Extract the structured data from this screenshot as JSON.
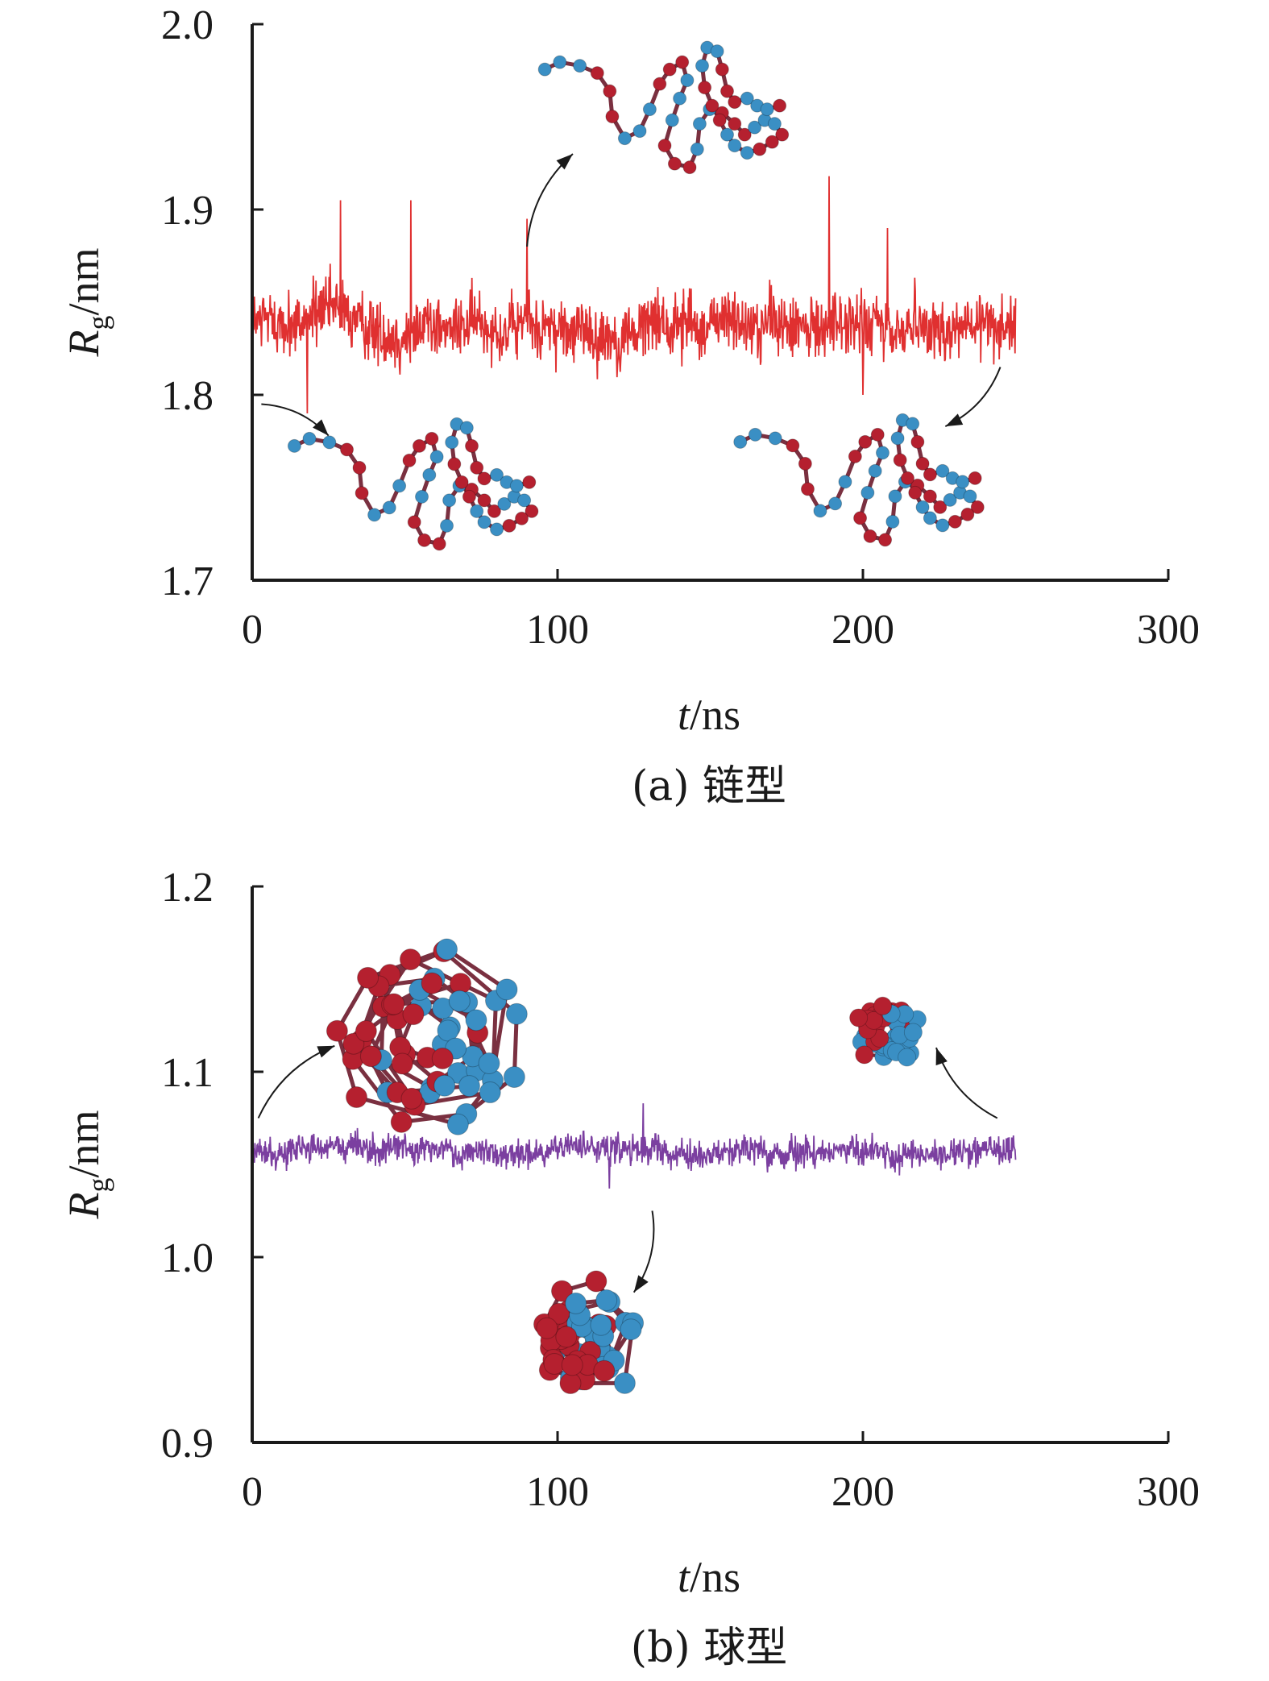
{
  "chart_data": [
    {
      "panel": "a",
      "type": "line",
      "caption": "(a) 链型",
      "ylabel_main": "R",
      "ylabel_sub": "g",
      "ylabel_unit": "/nm",
      "xlabel_main": "t",
      "xlabel_unit": "/ns",
      "xlim": [
        0,
        300
      ],
      "ylim": [
        1.7,
        2.0
      ],
      "xticks": [
        "0",
        "100",
        "200",
        "300"
      ],
      "yticks": [
        "1.7",
        "1.8",
        "1.9",
        "2.0"
      ],
      "color": "#e03030",
      "series_range": [
        0,
        250
      ],
      "series_mean": 1.838,
      "series_noise": 0.013,
      "spikes": [
        {
          "x": 18,
          "y": 1.79
        },
        {
          "x": 29,
          "y": 1.905
        },
        {
          "x": 52,
          "y": 1.905
        },
        {
          "x": 90,
          "y": 1.895
        },
        {
          "x": 189,
          "y": 1.918
        },
        {
          "x": 208,
          "y": 1.89
        },
        {
          "x": 200,
          "y": 1.8
        }
      ],
      "insets": [
        {
          "style": "chain",
          "cx": 140,
          "cy": 1.958,
          "scale": 1.0
        },
        {
          "style": "chain",
          "cx": 58,
          "cy": 1.757,
          "scale": 1.0
        },
        {
          "style": "chain",
          "cx": 204,
          "cy": 1.757,
          "scale": 1.0
        }
      ],
      "arrows": [
        {
          "from": [
            90,
            1.88
          ],
          "to": [
            105,
            1.93
          ]
        },
        {
          "from": [
            3,
            1.795
          ],
          "to": [
            25,
            1.778
          ]
        },
        {
          "from": [
            245,
            1.815
          ],
          "to": [
            227,
            1.783
          ]
        }
      ]
    },
    {
      "panel": "b",
      "type": "line",
      "caption": "(b) 球型",
      "ylabel_main": "R",
      "ylabel_sub": "g",
      "ylabel_unit": "/nm",
      "xlabel_main": "t",
      "xlabel_unit": "/ns",
      "xlim": [
        0,
        300
      ],
      "ylim": [
        0.9,
        1.2
      ],
      "xticks": [
        "0",
        "100",
        "200",
        "300"
      ],
      "yticks": [
        "0.9",
        "1.0",
        "1.1",
        "1.2"
      ],
      "color": "#7b3fa0",
      "series_range": [
        0,
        250
      ],
      "series_mean": 1.057,
      "series_noise": 0.006,
      "spikes": [
        {
          "x": 128,
          "y": 1.083
        },
        {
          "x": 117,
          "y": 1.037
        }
      ],
      "insets": [
        {
          "style": "globule",
          "cx": 58,
          "cy": 1.117,
          "scale": 1.0
        },
        {
          "style": "globule",
          "cx": 208,
          "cy": 1.123,
          "scale": 0.85
        },
        {
          "style": "globule",
          "cx": 108,
          "cy": 0.955,
          "scale": 1.0
        }
      ],
      "arrows": [
        {
          "from": [
            2,
            1.075
          ],
          "to": [
            27,
            1.114
          ]
        },
        {
          "from": [
            244,
            1.075
          ],
          "to": [
            224,
            1.113
          ]
        },
        {
          "from": [
            131,
            1.025
          ],
          "to": [
            125,
            0.981
          ]
        }
      ]
    }
  ]
}
